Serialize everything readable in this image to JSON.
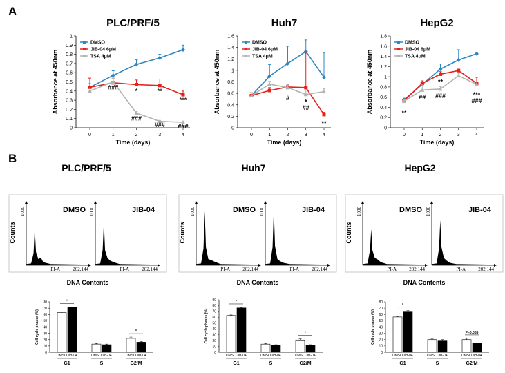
{
  "panels": [
    {
      "label": "A"
    },
    {
      "label": "B"
    }
  ],
  "colors": {
    "dmso": "#2e86c1",
    "jib": "#e32219",
    "tsa": "#b3b3b3"
  },
  "chart_data": [
    {
      "type": "line",
      "title": "PLC/PRF/5",
      "xlabel": "Time (days)",
      "ylabel": "Absorbance at 450nm",
      "x": [
        0,
        1,
        2,
        3,
        4
      ],
      "ylim": [
        0,
        1
      ],
      "yticks": [
        0,
        0.1,
        0.2,
        0.3,
        0.4,
        0.5,
        0.6,
        0.7,
        0.8,
        0.9,
        1
      ],
      "ytick_labels": [
        "0",
        "0.1",
        "0.2",
        "0.3",
        "0.4",
        "0.5",
        "0.6",
        "0.7",
        "0.8",
        "0.9",
        "1"
      ],
      "legend": "top-left",
      "series": [
        {
          "name": "DMSO",
          "color": "#2e86c1",
          "marker": "diamond",
          "values": [
            0.44,
            0.57,
            0.69,
            0.76,
            0.85
          ],
          "err": [
            0.04,
            0.05,
            0.05,
            0.04,
            0.05
          ]
        },
        {
          "name": "JIB-04 6μM",
          "color": "#e32219",
          "marker": "square",
          "values": [
            0.44,
            0.49,
            0.47,
            0.46,
            0.36
          ],
          "err": [
            0.1,
            0.05,
            0.05,
            0.07,
            0.04
          ]
        },
        {
          "name": "TSA 4μM",
          "color": "#b3b3b3",
          "marker": "triangle",
          "values": [
            0.4,
            0.5,
            0.16,
            0.07,
            0.06
          ],
          "err": [
            0.03,
            0.04,
            0.02,
            0.01,
            0.01
          ]
        }
      ],
      "annotations": [
        {
          "x": 1,
          "y": 0.44,
          "text": "###"
        },
        {
          "x": 2,
          "y": 0.4,
          "text": "*"
        },
        {
          "x": 3,
          "y": 0.4,
          "text": "**"
        },
        {
          "x": 4,
          "y": 0.3,
          "text": "***"
        },
        {
          "x": 2,
          "y": 0.1,
          "text": "###"
        },
        {
          "x": 3,
          "y": 0.03,
          "text": "###"
        },
        {
          "x": 4,
          "y": 0.02,
          "text": "###"
        }
      ]
    },
    {
      "type": "line",
      "title": "Huh7",
      "xlabel": "Time (days)",
      "ylabel": "Absorbance at 450nm",
      "x": [
        0,
        1,
        2,
        3,
        4
      ],
      "ylim": [
        0,
        1.6
      ],
      "yticks": [
        0,
        0.2,
        0.4,
        0.6,
        0.8,
        1,
        1.2,
        1.4,
        1.6
      ],
      "ytick_labels": [
        "0",
        "0.2",
        "0.4",
        "0.6",
        "0.8",
        "1",
        "1.2",
        "1.4",
        "1.6"
      ],
      "legend": "top-left",
      "series": [
        {
          "name": "DMSO",
          "color": "#2e86c1",
          "marker": "diamond",
          "values": [
            0.56,
            0.9,
            1.12,
            1.33,
            0.88
          ],
          "err": [
            0.05,
            0.2,
            0.3,
            0.2,
            0.43
          ]
        },
        {
          "name": "JIB-04 6μM",
          "color": "#e32219",
          "marker": "square",
          "values": [
            0.56,
            0.65,
            0.71,
            0.7,
            0.23
          ],
          "err": [
            0.05,
            0.05,
            0.05,
            0.6,
            0.04
          ]
        },
        {
          "name": "TSA 4μM",
          "color": "#b3b3b3",
          "marker": "triangle",
          "values": [
            0.56,
            0.76,
            0.7,
            0.58,
            0.63
          ],
          "err": [
            0.05,
            0.05,
            0.05,
            0.08,
            0.05
          ]
        }
      ],
      "annotations": [
        {
          "x": 2,
          "y": 0.52,
          "text": "#"
        },
        {
          "x": 3,
          "y": 0.45,
          "text": "*"
        },
        {
          "x": 3,
          "y": 0.35,
          "text": "##"
        },
        {
          "x": 4,
          "y": 0.08,
          "text": "**"
        }
      ]
    },
    {
      "type": "line",
      "title": "HepG2",
      "xlabel": "Time (days)",
      "ylabel": "Absorbance at 450nm",
      "x": [
        0,
        1,
        2,
        3,
        4
      ],
      "ylim": [
        0,
        1.8
      ],
      "yticks": [
        0,
        0.2,
        0.4,
        0.6,
        0.8,
        1,
        1.2,
        1.4,
        1.6,
        1.8
      ],
      "ytick_labels": [
        "0",
        "0.2",
        "0.4",
        "0.6",
        "0.8",
        "1",
        "1.2",
        "1.4",
        "1.6",
        "1.8"
      ],
      "legend": "top-left",
      "series": [
        {
          "name": "DMSO",
          "color": "#2e86c1",
          "marker": "diamond",
          "values": [
            0.55,
            0.85,
            1.15,
            1.33,
            1.45
          ],
          "err": [
            0.03,
            0.05,
            0.1,
            0.2,
            0.03
          ]
        },
        {
          "name": "JIB-04 6μM",
          "color": "#e32219",
          "marker": "square",
          "values": [
            0.53,
            0.87,
            1.05,
            1.12,
            0.87
          ],
          "err": [
            0.03,
            0.05,
            0.05,
            0.03,
            0.12
          ]
        },
        {
          "name": "TSA 4μM",
          "color": "#b3b3b3",
          "marker": "triangle",
          "values": [
            0.52,
            0.74,
            0.76,
            1.02,
            0.85
          ],
          "err": [
            0.03,
            0.1,
            0.05,
            0.05,
            0.05
          ]
        }
      ],
      "annotations": [
        {
          "x": 0,
          "y": 0.3,
          "text": "**"
        },
        {
          "x": 1,
          "y": 0.6,
          "text": "##"
        },
        {
          "x": 2,
          "y": 0.9,
          "text": "**"
        },
        {
          "x": 2,
          "y": 0.62,
          "text": "###"
        },
        {
          "x": 4,
          "y": 0.65,
          "text": "***"
        },
        {
          "x": 4,
          "y": 0.53,
          "text": "###"
        }
      ]
    },
    {
      "type": "bar",
      "title": "PLC/PRF/5",
      "ylabel": "Cell cycle phases (%)",
      "ylim": [
        0,
        80
      ],
      "yticks": [
        0,
        10,
        20,
        30,
        40,
        50,
        60,
        70,
        80
      ],
      "ytick_labels": [
        "0",
        "10",
        "20",
        "30",
        "40",
        "50",
        "60",
        "70",
        "80"
      ],
      "categories": [
        "G1",
        "S",
        "G2/M"
      ],
      "bar_labels": [
        "DMSO",
        "JIB-04"
      ],
      "series": [
        {
          "name": "DMSO",
          "values": [
            63,
            13,
            22
          ],
          "err": [
            1,
            1,
            2
          ]
        },
        {
          "name": "JIB-04",
          "values": [
            71,
            12,
            16
          ],
          "err": [
            1,
            1,
            1
          ]
        }
      ],
      "annotations": [
        {
          "category": 0,
          "text": "*"
        },
        {
          "category": 2,
          "text": "*"
        }
      ]
    },
    {
      "type": "bar",
      "title": "Huh7",
      "ylabel": "Cell cycle phases (%)",
      "ylim": [
        0,
        90
      ],
      "yticks": [
        0,
        10,
        20,
        30,
        40,
        50,
        60,
        70,
        80,
        90
      ],
      "ytick_labels": [
        "0",
        "10",
        "20",
        "30",
        "40",
        "50",
        "60",
        "70",
        "80",
        "90"
      ],
      "categories": [
        "G1",
        "S",
        "G2/M"
      ],
      "bar_labels": [
        "DMSO",
        "JIB-04"
      ],
      "series": [
        {
          "name": "DMSO",
          "values": [
            63,
            14,
            21
          ],
          "err": [
            1,
            1,
            2
          ]
        },
        {
          "name": "JIB-04",
          "values": [
            76,
            12,
            12
          ],
          "err": [
            1,
            1,
            1
          ]
        }
      ],
      "annotations": [
        {
          "category": 0,
          "text": "*"
        },
        {
          "category": 2,
          "text": "*"
        }
      ]
    },
    {
      "type": "bar",
      "title": "HepG2",
      "ylabel": "Cell cycle phases (%)",
      "ylim": [
        0,
        80
      ],
      "yticks": [
        0,
        10,
        20,
        30,
        40,
        50,
        60,
        70,
        80
      ],
      "ytick_labels": [
        "0",
        "10",
        "20",
        "30",
        "40",
        "50",
        "60",
        "70",
        "80"
      ],
      "categories": [
        "G1",
        "S",
        "G2/M"
      ],
      "bar_labels": [
        "DMSO",
        "JIB-04"
      ],
      "series": [
        {
          "name": "DMSO",
          "values": [
            56,
            20,
            20
          ],
          "err": [
            1,
            1,
            2
          ]
        },
        {
          "name": "JIB-04",
          "values": [
            65,
            19,
            14
          ],
          "err": [
            1,
            1,
            1
          ]
        }
      ],
      "annotations": [
        {
          "category": 0,
          "text": "*"
        },
        {
          "category": 2,
          "text": "P=0.055"
        }
      ]
    }
  ],
  "flow": {
    "groups": [
      {
        "title": "PLC/PRF/5",
        "conditions": [
          "DMSO",
          "JIB-04"
        ]
      },
      {
        "title": "Huh7",
        "conditions": [
          "DMSO",
          "JIB-04"
        ]
      },
      {
        "title": "HepG2",
        "conditions": [
          "DMSO",
          "JIB-04"
        ]
      }
    ],
    "y_label": "Counts",
    "x_label": "DNA Contents",
    "y_max_label": "1000",
    "x_channel_label": "PI-A",
    "x_max_label": "202,144"
  }
}
